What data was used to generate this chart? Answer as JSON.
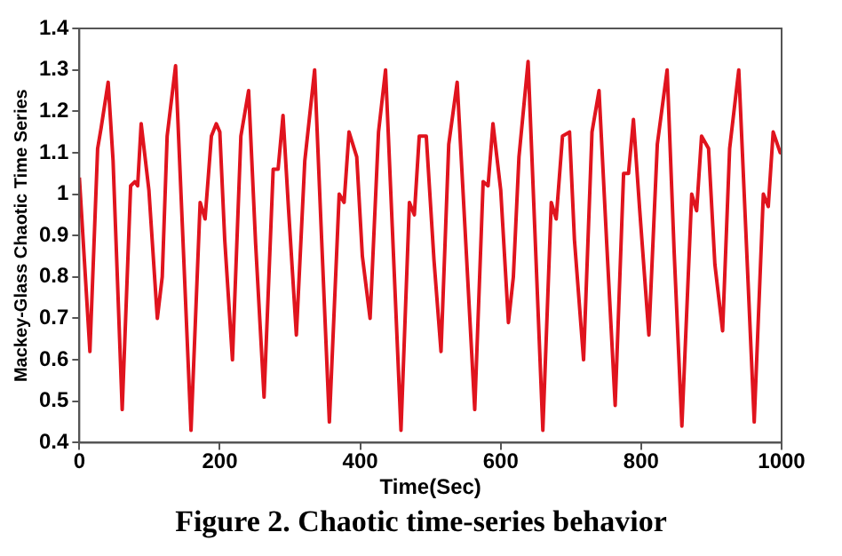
{
  "chart_data": {
    "type": "line",
    "xlabel": "Time(Sec)",
    "ylabel": "Mackey-Glass Chaotic Time Series",
    "annotations": [
      "Figure 2. Chaotic time-series behavior"
    ],
    "xlim": [
      0,
      1000
    ],
    "xticks": [
      0,
      200,
      400,
      600,
      800,
      1000
    ],
    "ylim": [
      0.4,
      1.4
    ],
    "yticks": [
      0.4,
      0.5,
      0.6,
      0.7,
      0.8,
      0.9,
      1,
      1.1,
      1.2,
      1.3,
      1.4
    ],
    "grid": false,
    "legend": false,
    "marker": "none",
    "line_style": "solid",
    "series": [
      {
        "color": "#e0141e",
        "x": [
          0,
          15,
          26,
          31,
          41,
          48,
          61,
          73,
          79,
          83,
          88,
          99,
          111,
          118,
          125,
          137,
          159,
          172,
          179,
          188,
          195,
          200,
          207,
          218,
          230,
          241,
          251,
          263,
          276,
          283,
          290,
          298,
          309,
          321,
          335,
          345,
          356,
          370,
          377,
          384,
          395,
          403,
          414,
          426,
          436,
          458,
          470,
          477,
          484,
          494,
          505,
          515,
          526,
          538,
          563,
          575,
          582,
          589,
          600,
          611,
          618,
          626,
          639,
          660,
          672,
          679,
          688,
          698,
          705,
          718,
          730,
          740,
          751,
          763,
          775,
          782,
          789,
          798,
          811,
          823,
          837,
          847,
          858,
          872,
          879,
          886,
          896,
          905,
          916,
          926,
          939,
          961,
          974,
          981,
          988,
          998,
          1000
        ],
        "values": [
          1.04,
          0.62,
          1.11,
          1.16,
          1.27,
          1.08,
          0.48,
          1.02,
          1.03,
          1.02,
          1.17,
          1.01,
          0.7,
          0.8,
          1.14,
          1.31,
          0.43,
          0.98,
          0.94,
          1.14,
          1.17,
          1.15,
          0.89,
          0.6,
          1.14,
          1.25,
          0.88,
          0.51,
          1.06,
          1.06,
          1.19,
          0.96,
          0.66,
          1.08,
          1.3,
          0.89,
          0.45,
          1.0,
          0.98,
          1.15,
          1.09,
          0.85,
          0.7,
          1.15,
          1.3,
          0.43,
          0.98,
          0.95,
          1.14,
          1.14,
          0.84,
          0.62,
          1.12,
          1.27,
          0.48,
          1.03,
          1.02,
          1.17,
          1.01,
          0.69,
          0.8,
          1.09,
          1.32,
          0.43,
          0.98,
          0.94,
          1.14,
          1.15,
          0.89,
          0.6,
          1.15,
          1.25,
          0.88,
          0.49,
          1.05,
          1.05,
          1.18,
          0.96,
          0.66,
          1.12,
          1.3,
          0.86,
          0.44,
          1.0,
          0.96,
          1.14,
          1.11,
          0.83,
          0.67,
          1.11,
          1.3,
          0.45,
          1.0,
          0.97,
          1.15,
          1.1,
          1.1
        ]
      }
    ]
  }
}
